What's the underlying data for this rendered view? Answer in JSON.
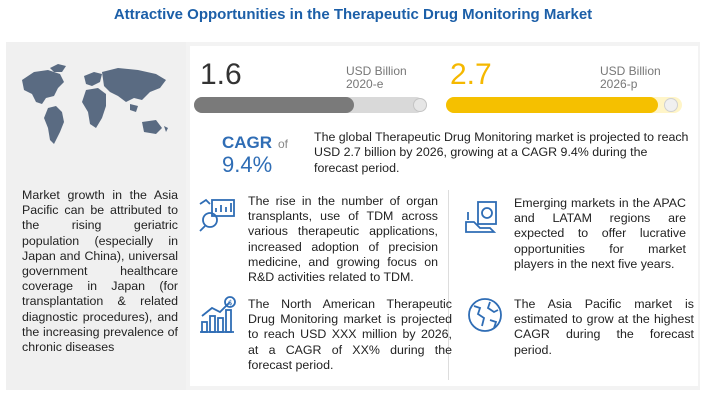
{
  "title": "Attractive Opportunities in the Therapeutic Drug Monitoring Market",
  "market": {
    "start_value": "1.6",
    "start_unit": "USD Billion",
    "start_year": "2020-e",
    "end_value": "2.7",
    "end_unit": "USD Billion",
    "end_year": "2026-p",
    "cagr_label": "CAGR",
    "cagr_of": "of",
    "cagr_value": "9.4%",
    "summary": "The global Therapeutic Drug Monitoring market is projected to reach USD 2.7 billion by 2026, growing at a CAGR 9.4% during the forecast period."
  },
  "left_panel": {
    "text": "Market growth in the Asia Pacific can be attributed to the rising geriatric population (especially in Japan and China), universal government healthcare coverage in Japan (for transplantation & related diagnostic procedures), and the increasing prevalence of chronic diseases"
  },
  "points": [
    {
      "icon": "analytics-magnifier-icon",
      "text": "The rise in the number of organ transplants, use of TDM across various therapeutic applications, increased adoption of precision medicine, and growing focus on R&D activities related to TDM."
    },
    {
      "icon": "money-growth-chart-icon",
      "text": "The North American Therapeutic Drug Monitoring market is projected to reach USD XXX million by 2026, at a CAGR of XX% during the forecast period."
    },
    {
      "icon": "money-in-hand-icon",
      "text": "Emerging markets in the APAC and LATAM regions are expected to offer lucrative opportunities for market players in the next five years."
    },
    {
      "icon": "globe-icon",
      "text": "The Asia Pacific market is estimated to grow at the highest CAGR during the forecast period."
    }
  ],
  "colors": {
    "title": "#1c5fa8",
    "cagr": "#2f6db5",
    "bar_2020": "#7a7a7a",
    "bar_2026": "#f5c000"
  }
}
